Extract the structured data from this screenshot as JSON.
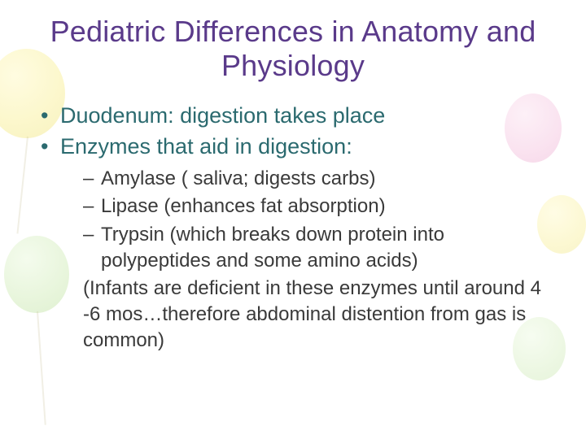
{
  "slide": {
    "title": "Pediatric Differences in Anatomy and Physiology",
    "bullets": [
      {
        "text": "Duodenum: digestion takes place"
      },
      {
        "text": "Enzymes that aid in digestion:"
      }
    ],
    "subbullets": [
      {
        "text": "Amylase ( saliva; digests carbs)"
      },
      {
        "text": "Lipase (enhances fat absorption)"
      },
      {
        "text": "Trypsin (which breaks down protein into polypeptides and some amino acids)"
      }
    ],
    "note": "(Infants are deficient in these enzymes until around 4 -6 mos…therefore abdominal distention from gas is common)",
    "colors": {
      "title": "#5a3a8a",
      "bullet": "#2b6a6f",
      "body": "#3a3a3a",
      "background": "#ffffff"
    },
    "fonts": {
      "title_size_pt": 36,
      "bullet_size_pt": 27,
      "sub_size_pt": 24,
      "family": "Verdana"
    }
  }
}
